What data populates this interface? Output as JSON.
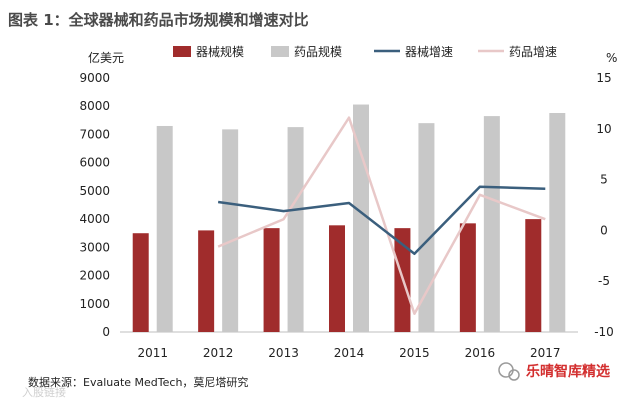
{
  "header": {
    "title": "图表 1：全球器械和药品市场规模和增速对比"
  },
  "left_unit": "亿美元",
  "right_unit": "%",
  "source": "数据来源：Evaluate MedTech，莫尼塔研究",
  "watermark": {
    "label": "乐晴智库精选",
    "faint_label": "入股链接"
  },
  "colors": {
    "device_bar": "#a02c2c",
    "drug_bar": "#c8c8c8",
    "device_line": "#3b5f7d",
    "drug_line": "#e8c8c8"
  },
  "chart_data": {
    "type": "bar",
    "categories": [
      "2011",
      "2012",
      "2013",
      "2014",
      "2015",
      "2016",
      "2017"
    ],
    "series": [
      {
        "name": "器械规模",
        "kind": "bar",
        "axis": "left",
        "values": [
          3500,
          3600,
          3680,
          3780,
          3680,
          3850,
          4000
        ]
      },
      {
        "name": "药品规模",
        "kind": "bar",
        "axis": "left",
        "values": [
          7300,
          7180,
          7260,
          8060,
          7400,
          7650,
          7760
        ]
      },
      {
        "name": "器械增速",
        "kind": "line",
        "axis": "right",
        "values": [
          null,
          2.8,
          1.9,
          2.7,
          -2.3,
          4.3,
          4.1
        ]
      },
      {
        "name": "药品增速",
        "kind": "line",
        "axis": "right",
        "values": [
          null,
          -1.6,
          1.1,
          11.1,
          -8.2,
          3.5,
          1.1
        ]
      }
    ],
    "left_axis": {
      "ylim": [
        0,
        9000
      ],
      "ticks": [
        "0",
        "1000",
        "2000",
        "3000",
        "4000",
        "5000",
        "6000",
        "7000",
        "8000",
        "9000"
      ]
    },
    "right_axis": {
      "ylim": [
        -10,
        15
      ],
      "ticks": [
        "-10",
        "-5",
        "0",
        "5",
        "10",
        "15"
      ]
    },
    "legend_position": "top",
    "grid": false
  }
}
